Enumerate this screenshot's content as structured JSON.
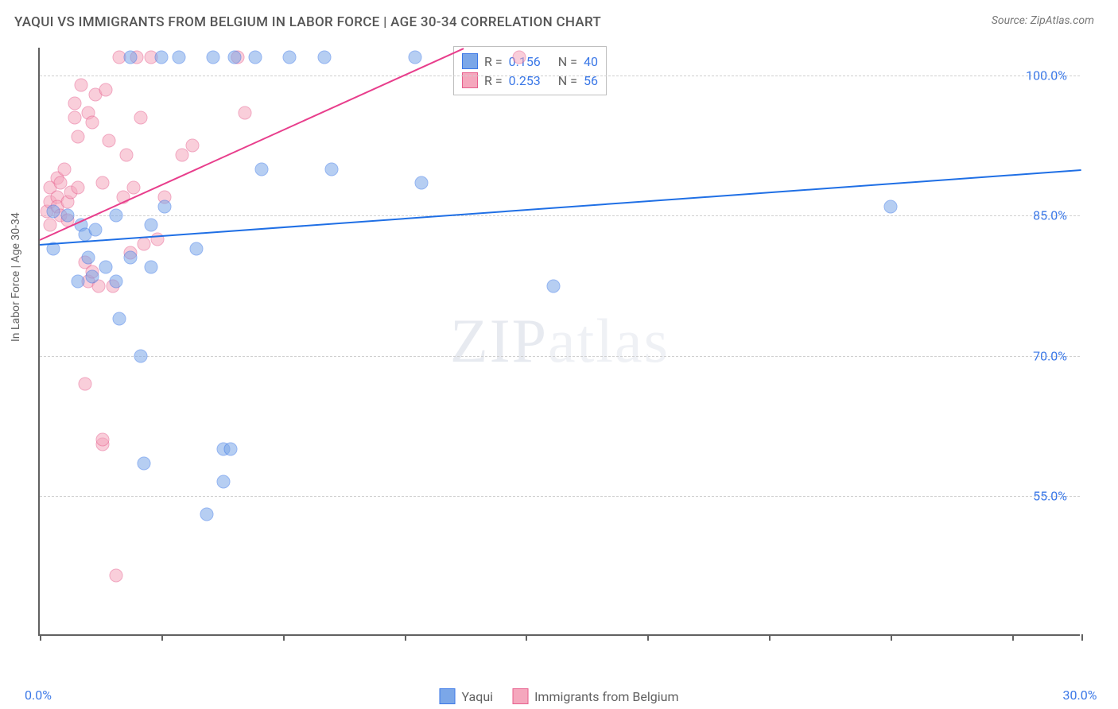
{
  "header": {
    "title": "YAQUI VS IMMIGRANTS FROM BELGIUM IN LABOR FORCE | AGE 30-34 CORRELATION CHART",
    "source": "Source: ZipAtlas.com"
  },
  "chart": {
    "type": "scatter",
    "ylabel": "In Labor Force | Age 30-34",
    "xlim": [
      0,
      30
    ],
    "ylim": [
      40,
      103
    ],
    "y_ticks": [
      55.0,
      70.0,
      85.0,
      100.0
    ],
    "y_tick_labels": [
      "55.0%",
      "70.0%",
      "85.0%",
      "100.0%"
    ],
    "x_ticks": [
      0,
      3.5,
      7,
      10.5,
      14,
      17.5,
      21,
      24.5,
      28,
      30
    ],
    "x_tick_labels_shown": {
      "0": "0.0%",
      "30": "30.0%"
    },
    "background_color": "#ffffff",
    "grid_color": "#d0d0d0",
    "axis_color": "#616161",
    "marker_radius": 8.5,
    "marker_opacity": 0.55,
    "series": [
      {
        "name": "Yaqui",
        "fill_color": "#7ba7e8",
        "stroke_color": "#3b78e7",
        "line_color": "#1f6fe5",
        "R": 0.156,
        "N": 40,
        "trend": {
          "x1": 0,
          "y1": 82.0,
          "x2": 30,
          "y2": 90.0
        },
        "points": [
          {
            "x": 0.4,
            "y": 85.5
          },
          {
            "x": 0.4,
            "y": 81.5
          },
          {
            "x": 0.8,
            "y": 85.0
          },
          {
            "x": 1.1,
            "y": 78.0
          },
          {
            "x": 1.2,
            "y": 84.0
          },
          {
            "x": 1.3,
            "y": 83.0
          },
          {
            "x": 1.4,
            "y": 80.5
          },
          {
            "x": 1.5,
            "y": 78.5
          },
          {
            "x": 1.6,
            "y": 83.5
          },
          {
            "x": 1.9,
            "y": 79.5
          },
          {
            "x": 2.2,
            "y": 78.0
          },
          {
            "x": 2.2,
            "y": 85.0
          },
          {
            "x": 2.3,
            "y": 74.0
          },
          {
            "x": 2.6,
            "y": 80.5
          },
          {
            "x": 2.6,
            "y": 102.0
          },
          {
            "x": 2.9,
            "y": 70.0
          },
          {
            "x": 3.0,
            "y": 58.5
          },
          {
            "x": 3.2,
            "y": 84.0
          },
          {
            "x": 3.2,
            "y": 79.5
          },
          {
            "x": 3.5,
            "y": 102.0
          },
          {
            "x": 3.6,
            "y": 86.0
          },
          {
            "x": 4.0,
            "y": 102.0
          },
          {
            "x": 4.5,
            "y": 81.5
          },
          {
            "x": 4.8,
            "y": 53.0
          },
          {
            "x": 5.0,
            "y": 102.0
          },
          {
            "x": 5.3,
            "y": 60.0
          },
          {
            "x": 5.3,
            "y": 56.5
          },
          {
            "x": 5.5,
            "y": 60.0
          },
          {
            "x": 5.6,
            "y": 102.0
          },
          {
            "x": 6.2,
            "y": 102.0
          },
          {
            "x": 6.4,
            "y": 90.0
          },
          {
            "x": 7.2,
            "y": 102.0
          },
          {
            "x": 8.2,
            "y": 102.0
          },
          {
            "x": 8.4,
            "y": 90.0
          },
          {
            "x": 10.8,
            "y": 102.0
          },
          {
            "x": 11.0,
            "y": 88.5
          },
          {
            "x": 14.8,
            "y": 77.5
          },
          {
            "x": 24.5,
            "y": 86.0
          }
        ]
      },
      {
        "name": "Immigants from Belgium",
        "legend_label": "Immigrants from Belgium",
        "fill_color": "#f5a7bd",
        "stroke_color": "#e75f8d",
        "line_color": "#e83e8c",
        "R": 0.253,
        "N": 56,
        "trend": {
          "x1": 0,
          "y1": 82.5,
          "x2": 12.2,
          "y2": 103.0
        },
        "points": [
          {
            "x": 0.2,
            "y": 85.5
          },
          {
            "x": 0.3,
            "y": 86.5
          },
          {
            "x": 0.3,
            "y": 84.0
          },
          {
            "x": 0.3,
            "y": 88.0
          },
          {
            "x": 0.5,
            "y": 87.0
          },
          {
            "x": 0.5,
            "y": 86.0
          },
          {
            "x": 0.5,
            "y": 89.0
          },
          {
            "x": 0.6,
            "y": 85.0
          },
          {
            "x": 0.6,
            "y": 88.5
          },
          {
            "x": 0.7,
            "y": 90.0
          },
          {
            "x": 0.8,
            "y": 86.5
          },
          {
            "x": 0.8,
            "y": 84.5
          },
          {
            "x": 0.9,
            "y": 87.5
          },
          {
            "x": 1.0,
            "y": 95.5
          },
          {
            "x": 1.0,
            "y": 97.0
          },
          {
            "x": 1.1,
            "y": 88.0
          },
          {
            "x": 1.1,
            "y": 93.5
          },
          {
            "x": 1.2,
            "y": 99.0
          },
          {
            "x": 1.3,
            "y": 80.0
          },
          {
            "x": 1.3,
            "y": 67.0
          },
          {
            "x": 1.4,
            "y": 78.0
          },
          {
            "x": 1.4,
            "y": 96.0
          },
          {
            "x": 1.5,
            "y": 79.0
          },
          {
            "x": 1.5,
            "y": 95.0
          },
          {
            "x": 1.6,
            "y": 98.0
          },
          {
            "x": 1.7,
            "y": 77.5
          },
          {
            "x": 1.8,
            "y": 88.5
          },
          {
            "x": 1.8,
            "y": 60.5
          },
          {
            "x": 1.8,
            "y": 61.0
          },
          {
            "x": 1.9,
            "y": 98.5
          },
          {
            "x": 2.0,
            "y": 93.0
          },
          {
            "x": 2.1,
            "y": 77.5
          },
          {
            "x": 2.2,
            "y": 46.5
          },
          {
            "x": 2.3,
            "y": 102.0
          },
          {
            "x": 2.4,
            "y": 87.0
          },
          {
            "x": 2.5,
            "y": 91.5
          },
          {
            "x": 2.6,
            "y": 81.0
          },
          {
            "x": 2.7,
            "y": 88.0
          },
          {
            "x": 2.8,
            "y": 102.0
          },
          {
            "x": 2.9,
            "y": 95.5
          },
          {
            "x": 3.0,
            "y": 82.0
          },
          {
            "x": 3.2,
            "y": 102.0
          },
          {
            "x": 3.4,
            "y": 82.5
          },
          {
            "x": 3.6,
            "y": 87.0
          },
          {
            "x": 4.1,
            "y": 91.5
          },
          {
            "x": 4.4,
            "y": 92.5
          },
          {
            "x": 5.9,
            "y": 96.0
          },
          {
            "x": 5.7,
            "y": 102.0
          },
          {
            "x": 13.8,
            "y": 102.0
          }
        ]
      }
    ]
  },
  "stats_legend": {
    "rows": [
      {
        "swatch_fill": "#7ba7e8",
        "swatch_border": "#3b78e7",
        "R": "0.156",
        "N": "40"
      },
      {
        "swatch_fill": "#f5a7bd",
        "swatch_border": "#e75f8d",
        "R": "0.253",
        "N": "56"
      }
    ],
    "r_label": "R =",
    "n_label": "N ="
  },
  "bottom_legend": {
    "items": [
      {
        "swatch_fill": "#7ba7e8",
        "swatch_border": "#3b78e7",
        "label": "Yaqui"
      },
      {
        "swatch_fill": "#f5a7bd",
        "swatch_border": "#e75f8d",
        "label": "Immigrants from Belgium"
      }
    ]
  },
  "watermark": {
    "bold": "ZIP",
    "thin": "atlas"
  }
}
